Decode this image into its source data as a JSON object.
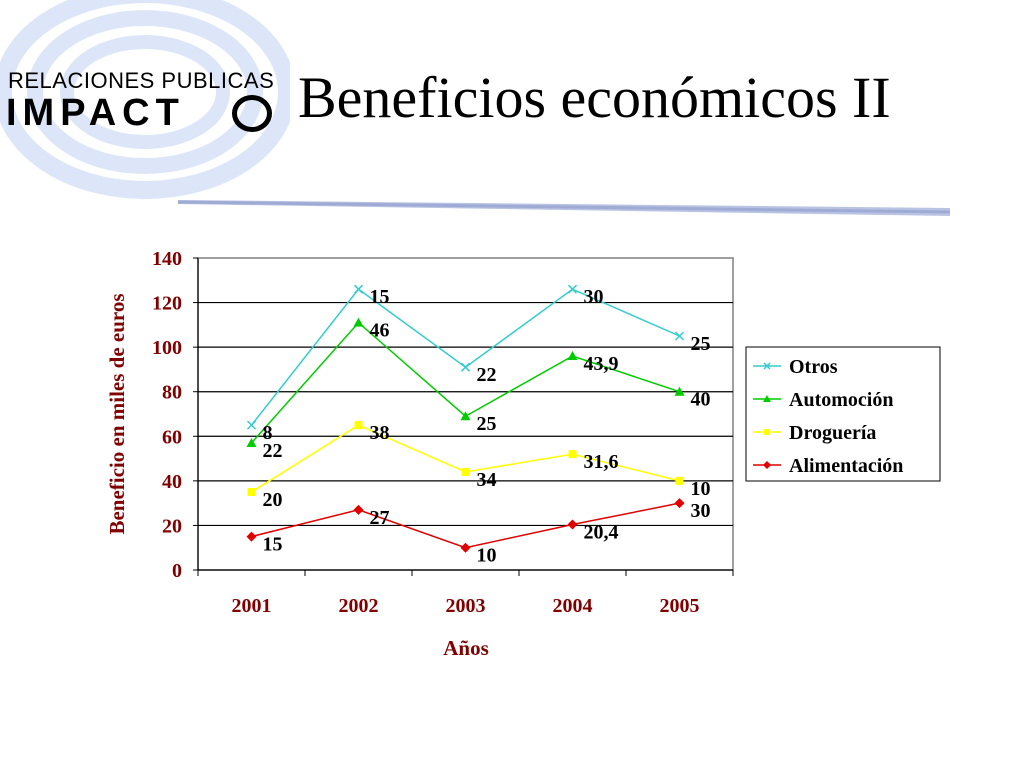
{
  "logo": {
    "name_text": "RELACIONES  PUBLICAS",
    "brand_text": "IMPACT"
  },
  "title": "Beneficios económicos II",
  "chart_data": {
    "type": "line",
    "stacked": true,
    "categories": [
      "2001",
      "2002",
      "2003",
      "2004",
      "2005"
    ],
    "xlabel": "Años",
    "ylabel": "Beneficio en miles de euros",
    "ylim": [
      0,
      140
    ],
    "yticks": [
      0,
      20,
      40,
      60,
      80,
      100,
      120,
      140
    ],
    "grid": true,
    "legend_position": "right",
    "series": [
      {
        "name": "Alimentación",
        "color": "#e00000",
        "marker": "diamond",
        "values": [
          15,
          27,
          10,
          20.4,
          30
        ],
        "labels": [
          "15",
          "27",
          "10",
          "20,4",
          "30"
        ]
      },
      {
        "name": "Droguería",
        "color": "#ffff00",
        "marker": "square",
        "values": [
          35,
          65,
          44,
          52,
          40
        ],
        "labels": [
          "20",
          "38",
          "34",
          "31,6",
          "10"
        ]
      },
      {
        "name": "Automoción",
        "color": "#00cc00",
        "marker": "triangle",
        "values": [
          57,
          111,
          69,
          96,
          80
        ],
        "labels": [
          "22",
          "46",
          "25",
          "43,9",
          "40"
        ]
      },
      {
        "name": "Otros",
        "color": "#33cccc",
        "marker": "x",
        "values": [
          65,
          126,
          91,
          126,
          105
        ],
        "labels": [
          "8",
          "15",
          "22",
          "30",
          "25"
        ]
      }
    ],
    "legend_order": [
      "Otros",
      "Automoción",
      "Droguería",
      "Alimentación"
    ]
  }
}
